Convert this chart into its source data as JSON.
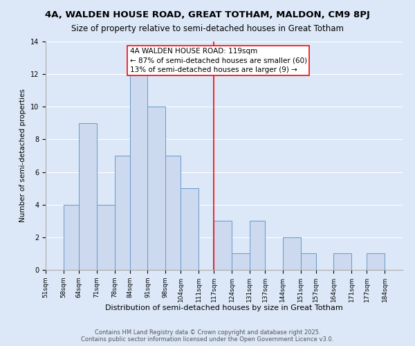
{
  "title": "4A, WALDEN HOUSE ROAD, GREAT TOTHAM, MALDON, CM9 8PJ",
  "subtitle": "Size of property relative to semi-detached houses in Great Totham",
  "xlabel": "Distribution of semi-detached houses by size in Great Totham",
  "ylabel": "Number of semi-detached properties",
  "bin_edges": [
    51,
    58,
    64,
    71,
    78,
    84,
    91,
    98,
    104,
    111,
    117,
    124,
    131,
    137,
    144,
    151,
    157,
    164,
    171,
    177,
    184,
    191
  ],
  "counts": [
    0,
    4,
    9,
    4,
    7,
    12,
    10,
    7,
    5,
    0,
    3,
    1,
    3,
    0,
    2,
    1,
    0,
    1,
    0,
    1,
    0
  ],
  "tick_labels": [
    "51sqm",
    "58sqm",
    "64sqm",
    "71sqm",
    "78sqm",
    "84sqm",
    "91sqm",
    "98sqm",
    "104sqm",
    "111sqm",
    "117sqm",
    "124sqm",
    "131sqm",
    "137sqm",
    "144sqm",
    "151sqm",
    "157sqm",
    "164sqm",
    "171sqm",
    "177sqm",
    "184sqm"
  ],
  "bar_color": "#ccd9ee",
  "bar_edge_color": "#6699cc",
  "vline_x": 117,
  "vline_color": "red",
  "annotation_text": "4A WALDEN HOUSE ROAD: 119sqm\n← 87% of semi-detached houses are smaller (60)\n13% of semi-detached houses are larger (9) →",
  "annotation_box_color": "white",
  "annotation_border_color": "red",
  "ylim": [
    0,
    14
  ],
  "yticks": [
    0,
    2,
    4,
    6,
    8,
    10,
    12,
    14
  ],
  "footnote": "Contains HM Land Registry data © Crown copyright and database right 2025.\nContains public sector information licensed under the Open Government Licence v3.0.",
  "bg_color": "#dce8f8",
  "title_fontsize": 9.5,
  "subtitle_fontsize": 8.5,
  "xlabel_fontsize": 8,
  "ylabel_fontsize": 7.5,
  "tick_fontsize": 6.5,
  "annotation_fontsize": 7.5,
  "footnote_fontsize": 6
}
